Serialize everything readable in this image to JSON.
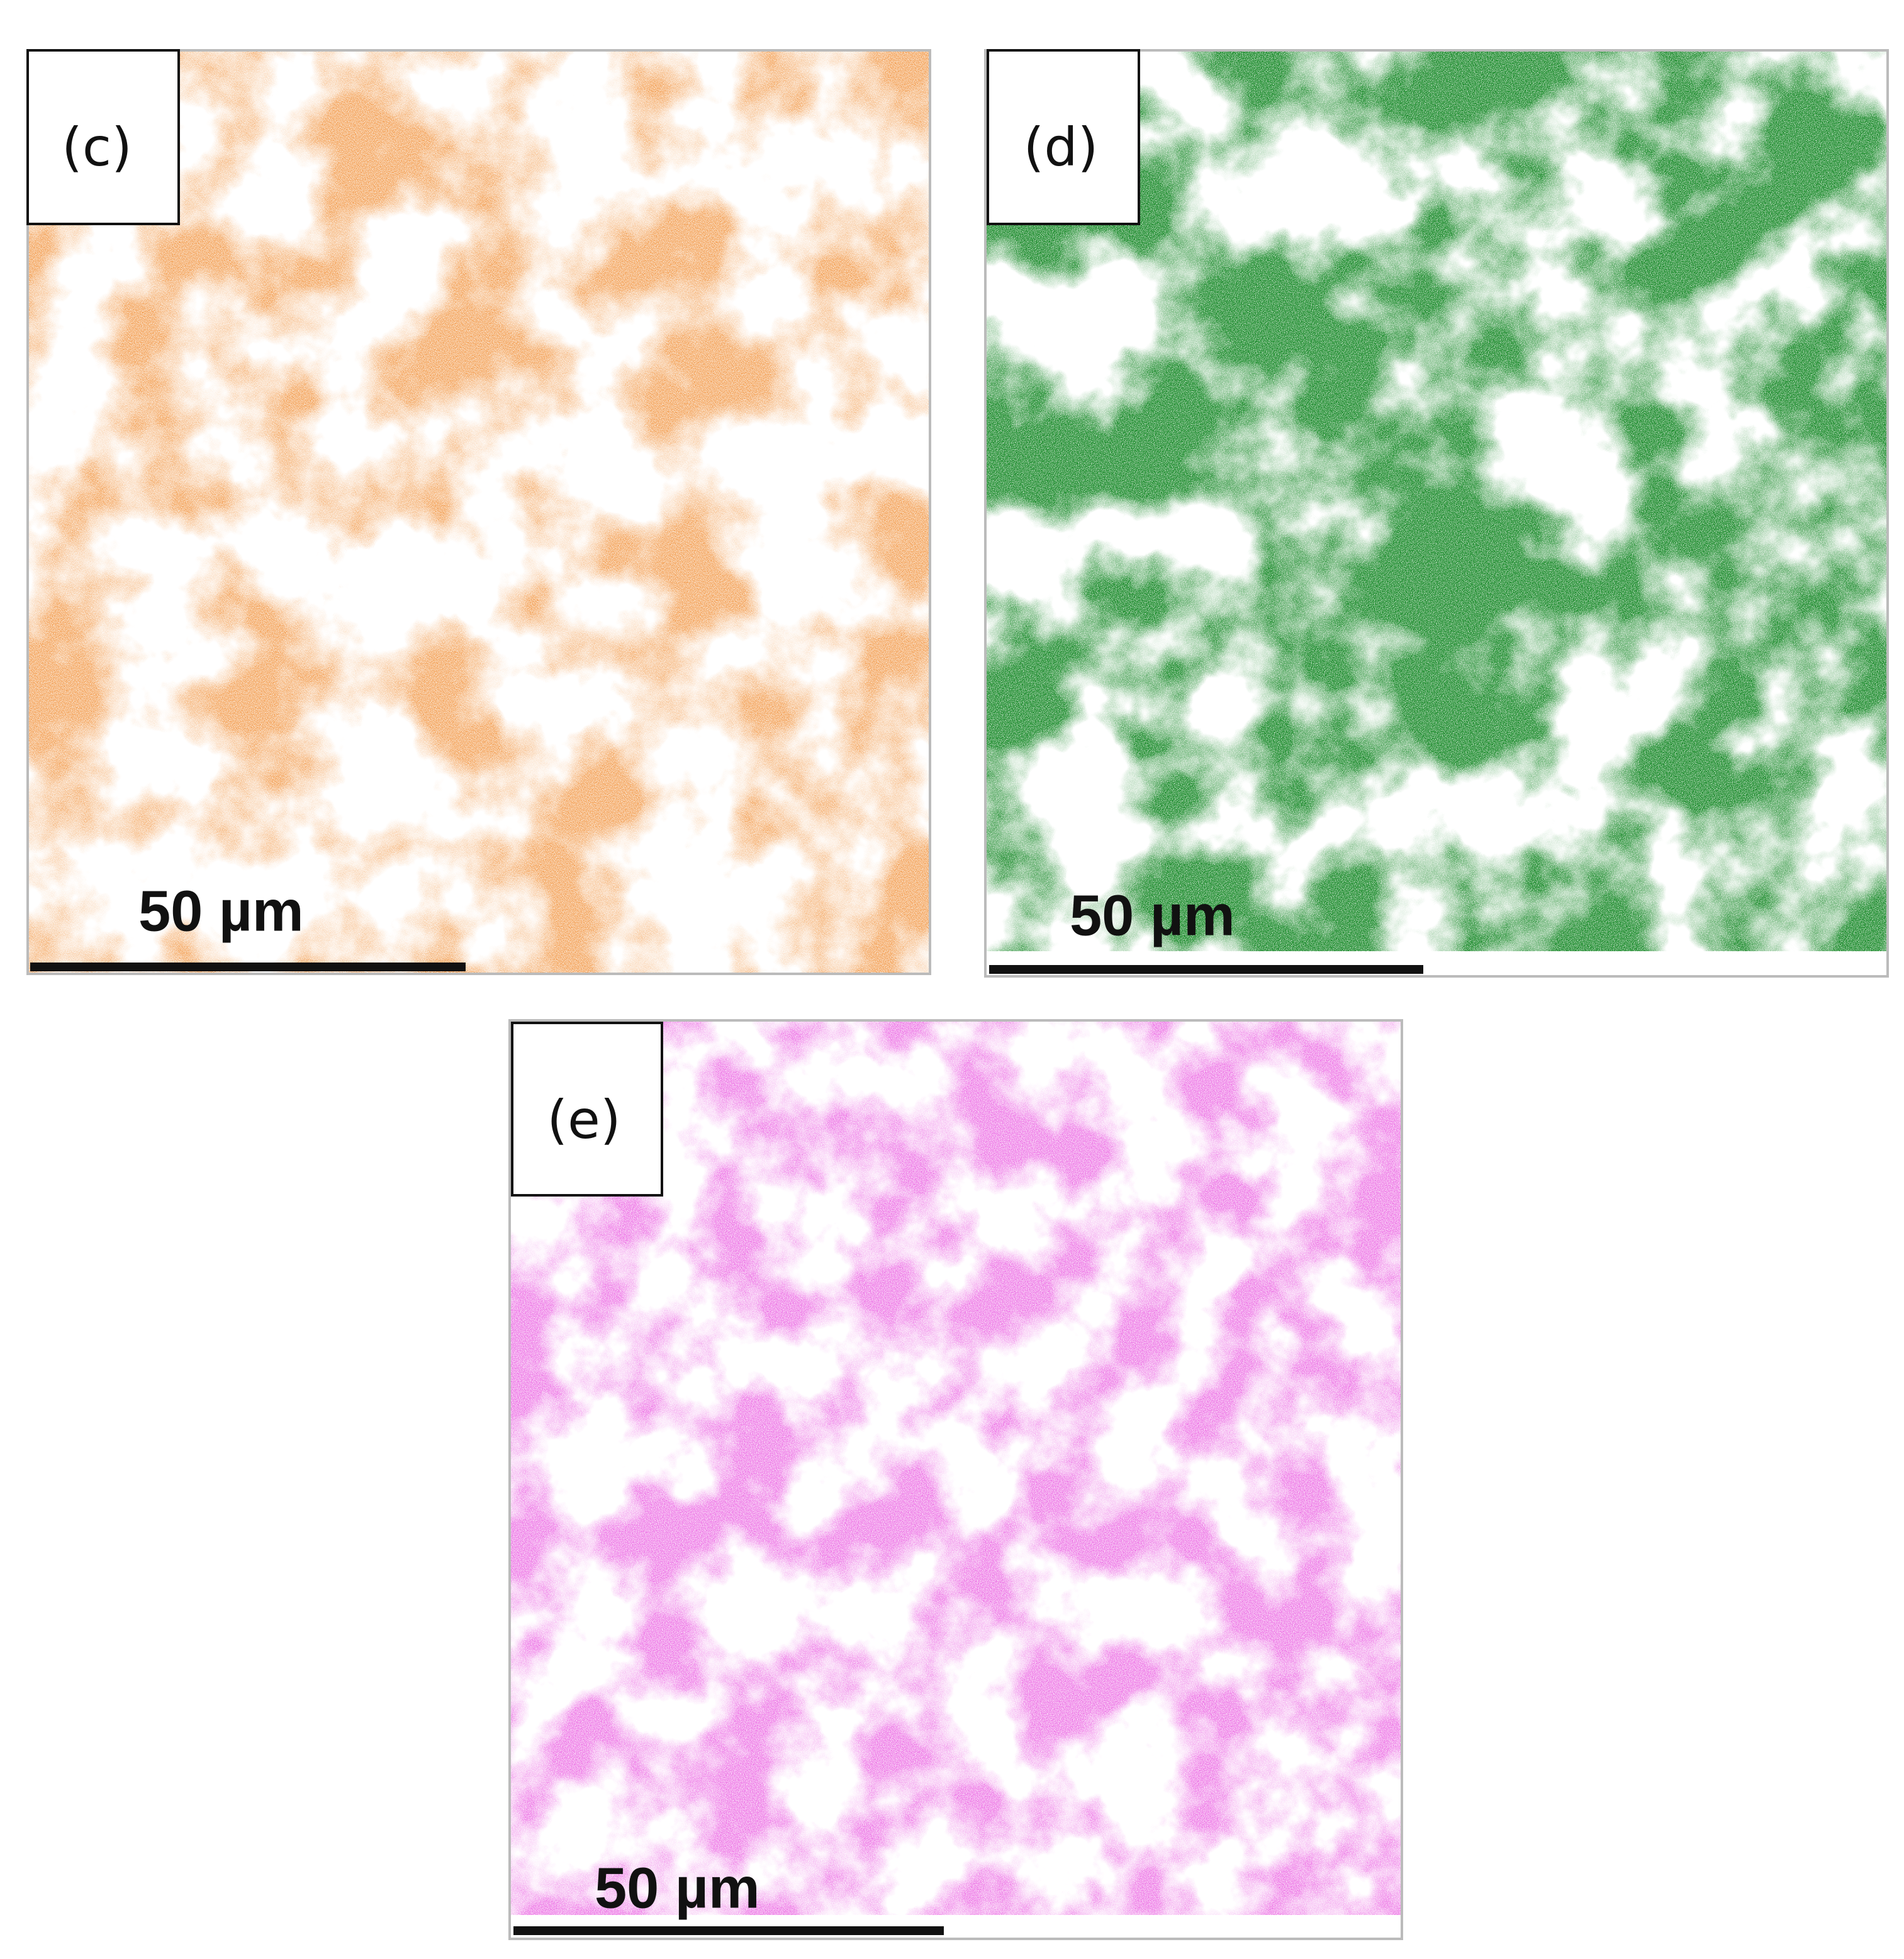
{
  "panels": [
    {
      "label": "(c)",
      "scale_bar": "50 µm"
    },
    {
      "label": "(d)",
      "scale_bar": "50 µm"
    },
    {
      "label": "(e)",
      "scale_bar": "50 µm"
    }
  ]
}
